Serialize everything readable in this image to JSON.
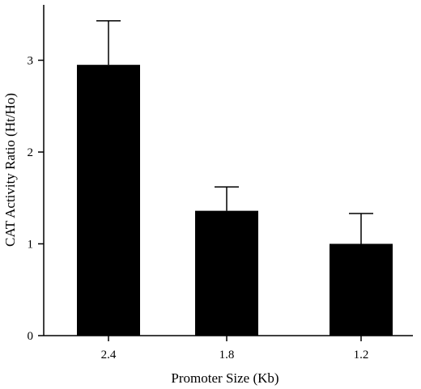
{
  "chart_data": {
    "type": "bar",
    "title": "",
    "xlabel": "Promoter Size (Kb)",
    "ylabel": "CAT Activity Ratio (Ht/Ho)",
    "categories": [
      "2.4",
      "1.8",
      "1.2"
    ],
    "values": [
      2.95,
      1.36,
      1.0
    ],
    "error": [
      0.48,
      0.26,
      0.33
    ],
    "ylim": [
      0,
      3.6
    ],
    "yticks": [
      0,
      1,
      2,
      3
    ],
    "bar_color": "#000000",
    "grid": false,
    "legend": "none"
  }
}
